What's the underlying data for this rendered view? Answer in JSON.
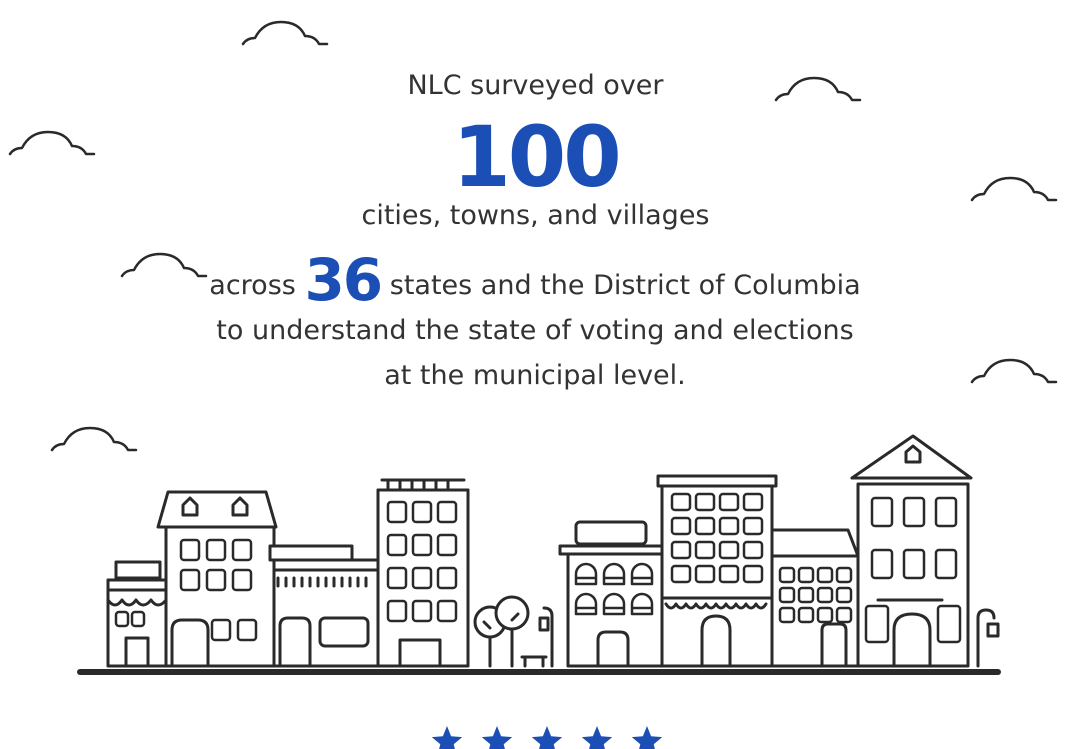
{
  "header": {
    "intro": "NLC surveyed over",
    "count": "100",
    "subject": "cities, towns, and villages"
  },
  "body": {
    "lead": "across",
    "states": "36",
    "rest": "states and the District of Columbia to understand the state of voting and elections at the municipal level."
  }
}
